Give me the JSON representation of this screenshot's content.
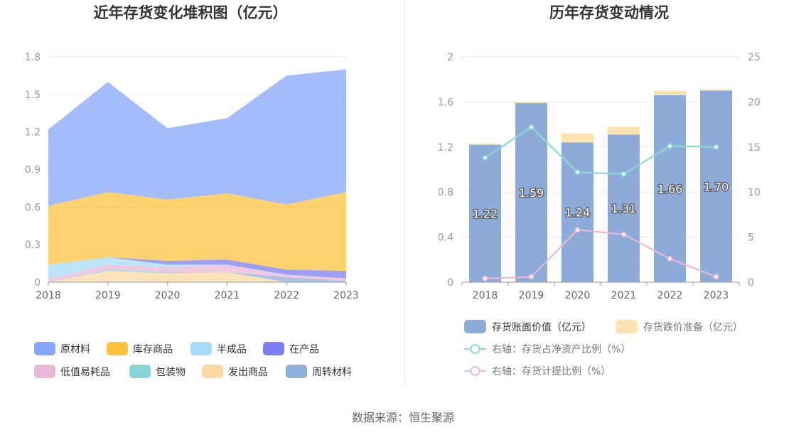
{
  "source": "数据来源：恒生聚源",
  "chart_data": [
    {
      "type": "area",
      "stacked": true,
      "title": "近年存货变化堆积图（亿元）",
      "categories": [
        "2018",
        "2019",
        "2020",
        "2021",
        "2022",
        "2023"
      ],
      "ylim": [
        0,
        1.8
      ],
      "yticks": [
        "0",
        "0.3",
        "0.6",
        "0.9",
        "1.2",
        "1.5",
        "1.8"
      ],
      "grid": true,
      "legend_position": "bottom",
      "series": [
        {
          "name": "发出商品",
          "color": "#fcd9a3",
          "values": [
            0.0,
            0.09,
            0.07,
            0.08,
            0.0,
            0.0
          ]
        },
        {
          "name": "包装物",
          "color": "#86d6d8",
          "values": [
            0.0,
            0.01,
            0.01,
            0.0,
            0.0,
            0.0
          ]
        },
        {
          "name": "周转材料",
          "color": "#8fb0dd",
          "values": [
            0.0,
            0.0,
            0.0,
            0.0,
            0.04,
            0.01
          ]
        },
        {
          "name": "低值易耗品",
          "color": "#e8b8d8",
          "values": [
            0.03,
            0.04,
            0.04,
            0.06,
            0.02,
            0.02
          ]
        },
        {
          "name": "半成品",
          "color": "#a6dcf7",
          "values": [
            0.11,
            0.06,
            0.02,
            0.0,
            0.0,
            0.0
          ]
        },
        {
          "name": "在产品",
          "color": "#7b7ff2",
          "values": [
            0.0,
            0.0,
            0.03,
            0.04,
            0.04,
            0.06
          ]
        },
        {
          "name": "库存商品",
          "color": "#fec33d",
          "values": [
            0.47,
            0.52,
            0.49,
            0.53,
            0.52,
            0.63
          ]
        },
        {
          "name": "原材料",
          "color": "#86a6f7",
          "values": [
            0.61,
            0.88,
            0.57,
            0.6,
            1.03,
            0.98
          ]
        }
      ],
      "legend_order": [
        "原材料",
        "库存商品",
        "半成品",
        "在产品",
        "低值易耗品",
        "包装物",
        "发出商品",
        "周转材料"
      ]
    },
    {
      "type": "bar",
      "stacked": true,
      "title": "历年存货变动情况",
      "categories": [
        "2018",
        "2019",
        "2020",
        "2021",
        "2022",
        "2023"
      ],
      "ylim": [
        0,
        2
      ],
      "yticks": [
        "0",
        "0.4",
        "0.8",
        "1.2",
        "1.6",
        "2"
      ],
      "y2lim": [
        0,
        25
      ],
      "y2ticks": [
        "0",
        "5",
        "10",
        "15",
        "20",
        "25"
      ],
      "grid": true,
      "legend_position": "bottom",
      "series": [
        {
          "name": "存货账面价值（亿元）",
          "color": "#8dabd9",
          "axis": "left",
          "values": [
            1.22,
            1.59,
            1.24,
            1.31,
            1.66,
            1.7
          ],
          "labels": [
            "1.22",
            "1.59",
            "1.24",
            "1.31",
            "1.66",
            "1.70"
          ]
        },
        {
          "name": "存货跌价准备（亿元）",
          "color": "#fde2b3",
          "axis": "left",
          "values": [
            0.01,
            0.01,
            0.08,
            0.07,
            0.04,
            0.01
          ]
        }
      ],
      "line_series": [
        {
          "name": "右轴：存货占净资产比例（%）",
          "color": "#8ed8d4",
          "axis": "right",
          "values": [
            13.8,
            17.2,
            12.2,
            12.0,
            15.1,
            15.0
          ]
        },
        {
          "name": "右轴：存货计提比例（%）",
          "color": "#e9b7d6",
          "axis": "right",
          "values": [
            0.4,
            0.6,
            5.8,
            5.3,
            2.6,
            0.6
          ]
        }
      ]
    }
  ]
}
